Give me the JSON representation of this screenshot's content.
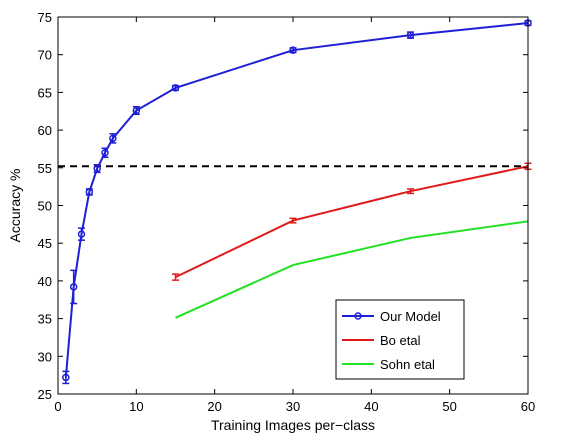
{
  "chart_data": {
    "type": "line",
    "title": "",
    "xlabel": "Training Images per−class",
    "ylabel": "Accuracy %",
    "xlim": [
      0,
      60
    ],
    "ylim": [
      25,
      75
    ],
    "x_ticks": [
      "0",
      "10",
      "20",
      "30",
      "40",
      "50",
      "60"
    ],
    "y_ticks": [
      "25",
      "30",
      "35",
      "40",
      "45",
      "50",
      "55",
      "60",
      "65",
      "70",
      "75"
    ],
    "grid": false,
    "legend_position": "bottom-right",
    "reference_line": {
      "y": 55.2,
      "style": "dashed",
      "color": "#000000"
    },
    "series": [
      {
        "name": "Our Model",
        "color": "#1f1fd6",
        "marker": "circle",
        "error_bars": true,
        "x": [
          1,
          2,
          3,
          4,
          5,
          6,
          7,
          10,
          15,
          30,
          45,
          60
        ],
        "y": [
          27.2,
          39.2,
          46.2,
          51.8,
          54.9,
          57.0,
          58.9,
          62.6,
          65.6,
          70.6,
          72.6,
          74.2
        ],
        "err": [
          0.8,
          2.2,
          0.8,
          0.4,
          0.5,
          0.6,
          0.6,
          0.5,
          0.3,
          0.3,
          0.4,
          0.3
        ]
      },
      {
        "name": "Bo etal",
        "color": "#e01b1b",
        "error_bars": true,
        "x": [
          15,
          30,
          45,
          60
        ],
        "y": [
          40.5,
          48.0,
          51.9,
          55.2
        ],
        "err": [
          0.4,
          0.3,
          0.3,
          0.4
        ]
      },
      {
        "name": "Sohn etal",
        "color": "#22e022",
        "error_bars": false,
        "x": [
          15,
          30,
          45,
          60
        ],
        "y": [
          35.1,
          42.1,
          45.7,
          47.9
        ]
      }
    ]
  }
}
